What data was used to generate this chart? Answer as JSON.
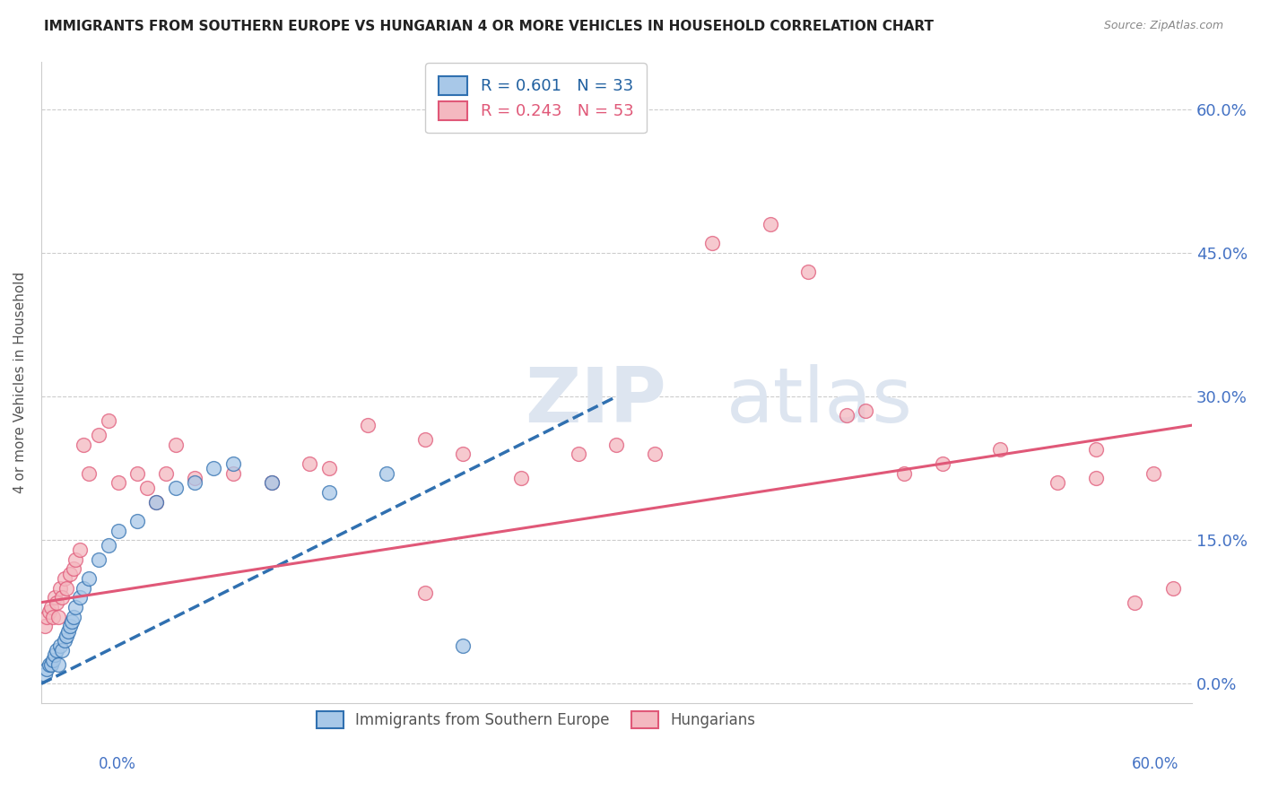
{
  "title": "IMMIGRANTS FROM SOUTHERN EUROPE VS HUNGARIAN 4 OR MORE VEHICLES IN HOUSEHOLD CORRELATION CHART",
  "source": "Source: ZipAtlas.com",
  "ylabel": "4 or more Vehicles in Household",
  "ytick_labels": [
    "0.0%",
    "15.0%",
    "30.0%",
    "45.0%",
    "60.0%"
  ],
  "ytick_values": [
    0.0,
    15.0,
    30.0,
    45.0,
    60.0
  ],
  "xlim": [
    0.0,
    60.0
  ],
  "ylim": [
    -2.0,
    65.0
  ],
  "legend1_text": "R = 0.601   N = 33",
  "legend2_text": "R = 0.243   N = 53",
  "blue_points_x": [
    0.2,
    0.3,
    0.4,
    0.5,
    0.6,
    0.7,
    0.8,
    0.9,
    1.0,
    1.1,
    1.2,
    1.3,
    1.4,
    1.5,
    1.6,
    1.7,
    1.8,
    2.0,
    2.2,
    2.5,
    3.0,
    3.5,
    4.0,
    5.0,
    6.0,
    7.0,
    8.0,
    9.0,
    10.0,
    12.0,
    15.0,
    18.0,
    22.0
  ],
  "blue_points_y": [
    1.0,
    1.5,
    2.0,
    2.0,
    2.5,
    3.0,
    3.5,
    2.0,
    4.0,
    3.5,
    4.5,
    5.0,
    5.5,
    6.0,
    6.5,
    7.0,
    8.0,
    9.0,
    10.0,
    11.0,
    13.0,
    14.5,
    16.0,
    17.0,
    19.0,
    20.5,
    21.0,
    22.5,
    23.0,
    21.0,
    20.0,
    22.0,
    4.0
  ],
  "pink_points_x": [
    0.2,
    0.3,
    0.4,
    0.5,
    0.6,
    0.7,
    0.8,
    0.9,
    1.0,
    1.1,
    1.2,
    1.3,
    1.5,
    1.7,
    1.8,
    2.0,
    2.2,
    2.5,
    3.0,
    3.5,
    4.0,
    5.0,
    5.5,
    6.0,
    6.5,
    7.0,
    8.0,
    10.0,
    12.0,
    14.0,
    15.0,
    17.0,
    20.0,
    22.0,
    25.0,
    28.0,
    30.0,
    32.0,
    35.0,
    38.0,
    40.0,
    42.0,
    43.0,
    45.0,
    47.0,
    50.0,
    53.0,
    55.0,
    57.0,
    58.0,
    59.0,
    20.0,
    55.0
  ],
  "pink_points_y": [
    6.0,
    7.0,
    7.5,
    8.0,
    7.0,
    9.0,
    8.5,
    7.0,
    10.0,
    9.0,
    11.0,
    10.0,
    11.5,
    12.0,
    13.0,
    14.0,
    25.0,
    22.0,
    26.0,
    27.5,
    21.0,
    22.0,
    20.5,
    19.0,
    22.0,
    25.0,
    21.5,
    22.0,
    21.0,
    23.0,
    22.5,
    27.0,
    25.5,
    24.0,
    21.5,
    24.0,
    25.0,
    24.0,
    46.0,
    48.0,
    43.0,
    28.0,
    28.5,
    22.0,
    23.0,
    24.5,
    21.0,
    21.5,
    8.5,
    22.0,
    10.0,
    9.5,
    24.5
  ],
  "blue_line_x": [
    0.0,
    30.0
  ],
  "blue_line_y": [
    0.0,
    30.0
  ],
  "pink_line_x": [
    0.0,
    60.0
  ],
  "pink_line_y": [
    8.5,
    27.0
  ],
  "grid_color": "#cccccc",
  "bg_color": "#ffffff",
  "blue_scatter_color": "#a8c8e8",
  "pink_scatter_color": "#f4b8c0",
  "blue_line_color": "#3070b0",
  "pink_line_color": "#e05878",
  "blue_legend_patch": "#a8c8e8",
  "pink_legend_patch": "#f4b8c0",
  "watermark_color": "#dde5f0",
  "tick_label_color": "#4472c4",
  "legend_text_blue": "#2060a0",
  "legend_text_pink": "#e05878"
}
